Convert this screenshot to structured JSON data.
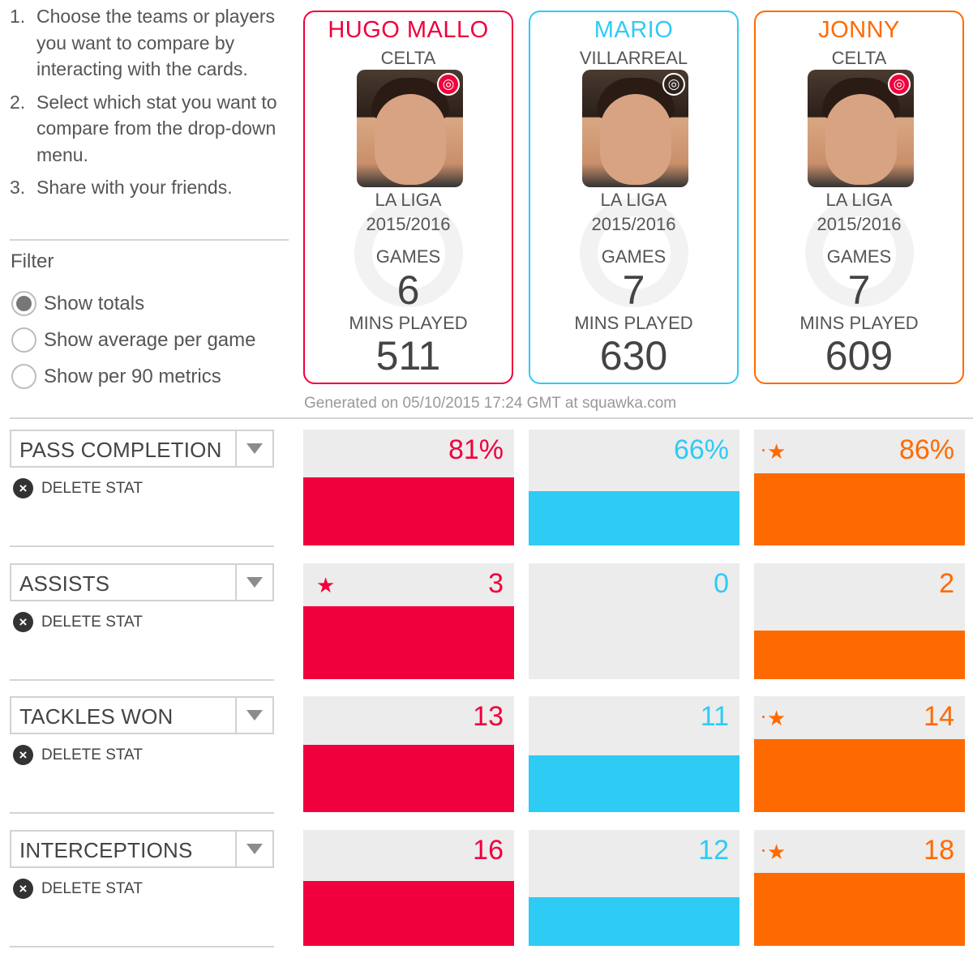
{
  "instructions": {
    "steps": [
      {
        "num": "1.",
        "text": "Choose the teams or players you want to compare by interacting with the cards."
      },
      {
        "num": "2.",
        "text": "Select which stat you want to compare from the drop-down menu."
      },
      {
        "num": "3.",
        "text": "Share with your friends."
      }
    ]
  },
  "filter": {
    "title": "Filter",
    "options": [
      {
        "label": "Show totals",
        "selected": true
      },
      {
        "label": "Show average per game",
        "selected": false
      },
      {
        "label": "Show per 90 metrics",
        "selected": false
      }
    ]
  },
  "players": [
    {
      "name": "HUGO MALLO",
      "team": "CELTA",
      "league": "LA LIGA",
      "season": "2015/2016",
      "games_label": "GAMES",
      "games": "6",
      "mins_label": "MINS PLAYED",
      "mins": "511",
      "color": "#f0003c",
      "badge": "red-icon"
    },
    {
      "name": "MARIO",
      "team": "VILLARREAL",
      "league": "LA LIGA",
      "season": "2015/2016",
      "games_label": "GAMES",
      "games": "7",
      "mins_label": "MINS PLAYED",
      "mins": "630",
      "color": "#2ecbf5",
      "badge": "grey-icon"
    },
    {
      "name": "JONNY",
      "team": "CELTA",
      "league": "LA LIGA",
      "season": "2015/2016",
      "games_label": "GAMES",
      "games": "7",
      "mins_label": "MINS PLAYED",
      "mins": "609",
      "color": "#ff6a00",
      "badge": "red-icon"
    }
  ],
  "generated_text": "Generated on 05/10/2015 17:24 GMT at squawka.com",
  "delete_label": "DELETE STAT",
  "stats": [
    {
      "label": "PASS COMPLETION",
      "values": [
        "81%",
        "66%",
        "86%"
      ],
      "fractions": [
        0.59,
        0.47,
        0.62
      ],
      "leader": 2
    },
    {
      "label": "ASSISTS",
      "values": [
        "3",
        "0",
        "2"
      ],
      "fractions": [
        0.63,
        0.0,
        0.42
      ],
      "leader": 0
    },
    {
      "label": "TACKLES WON",
      "values": [
        "13",
        "11",
        "14"
      ],
      "fractions": [
        0.58,
        0.49,
        0.63
      ],
      "leader": 2
    },
    {
      "label": "INTERCEPTIONS",
      "values": [
        "16",
        "12",
        "18"
      ],
      "fractions": [
        0.56,
        0.42,
        0.63
      ],
      "leader": 2
    }
  ]
}
